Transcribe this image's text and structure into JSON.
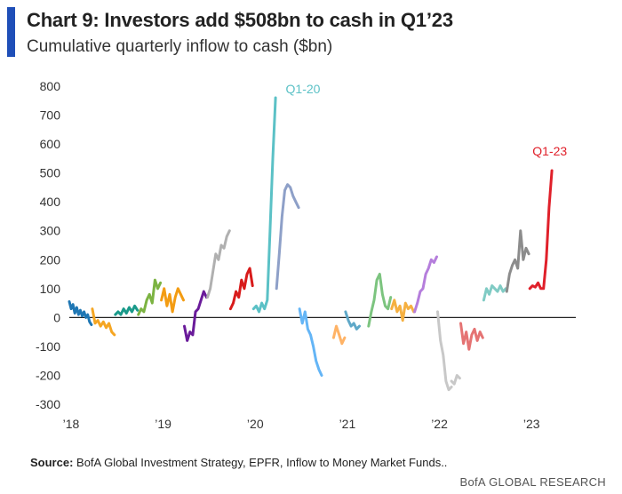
{
  "header": {
    "title": "Chart 9: Investors add $508bn to cash in Q1’23",
    "subtitle": "Cumulative quarterly inflow to cash ($bn)",
    "accent_color": "#1f4fb8"
  },
  "footer": {
    "source_label": "Source:",
    "source_text": "BofA Global Investment Strategy, EPFR, Inflow to Money Market Funds..",
    "brand": "BofA GLOBAL RESEARCH"
  },
  "chart_data": {
    "type": "line",
    "title": "Chart 9: Investors add $508bn to cash in Q1’23",
    "subtitle": "Cumulative quarterly inflow to cash ($bn)",
    "ylabel": "",
    "xlabel": "",
    "ylim": [
      -300,
      800
    ],
    "xlim": [
      2018.0,
      2023.5
    ],
    "yticks": [
      -300,
      -200,
      -100,
      0,
      100,
      200,
      300,
      400,
      500,
      600,
      700,
      800
    ],
    "ytick_labels": [
      "-300",
      "-200",
      "-100",
      "0",
      "100",
      "200",
      "300",
      "400",
      "500",
      "600",
      "700",
      "800"
    ],
    "xticks": [
      2018,
      2019,
      2020,
      2021,
      2022,
      2023
    ],
    "xtick_labels": [
      "’18",
      "’19",
      "’20",
      "’21",
      "’22",
      "’23"
    ],
    "grid": false,
    "zero_line": true,
    "annotations": [
      {
        "text": "Q1-20",
        "x": 2020.35,
        "y": 775,
        "color": "#5bc1c6"
      },
      {
        "text": "Q1-23",
        "x": 2023.03,
        "y": 560,
        "color": "#e0202a"
      }
    ],
    "series": [
      {
        "quarter": "Q1-18",
        "color": "#1f77b4",
        "x": [
          2018.0,
          2018.02,
          2018.04,
          2018.06,
          2018.08,
          2018.1,
          2018.12,
          2018.14,
          2018.16,
          2018.18,
          2018.2,
          2018.22,
          2018.24
        ],
        "y": [
          55,
          30,
          45,
          15,
          35,
          10,
          25,
          5,
          20,
          0,
          10,
          -15,
          -25
        ]
      },
      {
        "quarter": "Q2-18",
        "color": "#f5a623",
        "x": [
          2018.25,
          2018.28,
          2018.31,
          2018.34,
          2018.37,
          2018.4,
          2018.43,
          2018.46,
          2018.49
        ],
        "y": [
          30,
          -20,
          -10,
          -30,
          -15,
          -35,
          -20,
          -50,
          -60
        ]
      },
      {
        "quarter": "Q3-18",
        "color": "#1a9a8a",
        "x": [
          2018.5,
          2018.53,
          2018.56,
          2018.59,
          2018.62,
          2018.65,
          2018.68,
          2018.71,
          2018.74
        ],
        "y": [
          10,
          20,
          10,
          30,
          15,
          35,
          20,
          40,
          25
        ]
      },
      {
        "quarter": "Q4-18",
        "color": "#7cb342",
        "x": [
          2018.75,
          2018.78,
          2018.81,
          2018.84,
          2018.87,
          2018.9,
          2018.93,
          2018.96,
          2018.99
        ],
        "y": [
          10,
          30,
          20,
          60,
          80,
          50,
          130,
          100,
          120
        ]
      },
      {
        "quarter": "Q1-19",
        "color": "#f39c12",
        "x": [
          2019.0,
          2019.03,
          2019.06,
          2019.09,
          2019.12,
          2019.15,
          2019.18,
          2019.21,
          2019.24
        ],
        "y": [
          60,
          100,
          40,
          80,
          20,
          70,
          100,
          80,
          60
        ]
      },
      {
        "quarter": "Q2-19",
        "color": "#6a1b9a",
        "x": [
          2019.25,
          2019.28,
          2019.31,
          2019.34,
          2019.37,
          2019.4,
          2019.43,
          2019.46,
          2019.49
        ],
        "y": [
          -30,
          -80,
          -50,
          -60,
          20,
          30,
          60,
          90,
          70
        ]
      },
      {
        "quarter": "Q3-19",
        "color": "#b0b0b0",
        "x": [
          2019.5,
          2019.53,
          2019.56,
          2019.59,
          2019.62,
          2019.65,
          2019.68,
          2019.71,
          2019.74
        ],
        "y": [
          70,
          100,
          160,
          220,
          200,
          250,
          240,
          280,
          300
        ]
      },
      {
        "quarter": "Q4-19",
        "color": "#d81b1b",
        "x": [
          2019.75,
          2019.78,
          2019.81,
          2019.84,
          2019.87,
          2019.9,
          2019.93,
          2019.96,
          2019.99
        ],
        "y": [
          30,
          50,
          90,
          70,
          130,
          100,
          150,
          170,
          110
        ]
      },
      {
        "quarter": "Q1-20",
        "color": "#5bc1c6",
        "x": [
          2020.0,
          2020.03,
          2020.06,
          2020.09,
          2020.12,
          2020.15,
          2020.18,
          2020.21,
          2020.24
        ],
        "y": [
          30,
          40,
          20,
          50,
          30,
          60,
          300,
          550,
          760
        ]
      },
      {
        "quarter": "Q2-20",
        "color": "#8ea0c8",
        "x": [
          2020.25,
          2020.28,
          2020.31,
          2020.34,
          2020.37,
          2020.4,
          2020.43,
          2020.46,
          2020.49
        ],
        "y": [
          100,
          220,
          350,
          440,
          460,
          450,
          420,
          400,
          380
        ]
      },
      {
        "quarter": "Q3-20",
        "color": "#64b5f6",
        "x": [
          2020.5,
          2020.53,
          2020.56,
          2020.59,
          2020.62,
          2020.65,
          2020.68,
          2020.71,
          2020.74
        ],
        "y": [
          30,
          -20,
          20,
          -40,
          -60,
          -100,
          -150,
          -180,
          -200
        ]
      },
      {
        "quarter": "Q4-20",
        "color": "#ffb366",
        "x": [
          2020.87,
          2020.9,
          2020.93,
          2020.96,
          2020.99
        ],
        "y": [
          -70,
          -30,
          -60,
          -90,
          -70
        ]
      },
      {
        "quarter": "Q1-21",
        "color": "#5fa8c8",
        "x": [
          2021.0,
          2021.03,
          2021.06,
          2021.09,
          2021.12,
          2021.15
        ],
        "y": [
          20,
          -10,
          -30,
          -20,
          -40,
          -30
        ]
      },
      {
        "quarter": "Q2-21",
        "color": "#7cc47f",
        "x": [
          2021.25,
          2021.28,
          2021.31,
          2021.34,
          2021.37,
          2021.4,
          2021.43,
          2021.46,
          2021.49
        ],
        "y": [
          -30,
          20,
          60,
          130,
          150,
          80,
          40,
          30,
          70
        ]
      },
      {
        "quarter": "Q3-21",
        "color": "#f5b041",
        "x": [
          2021.5,
          2021.53,
          2021.56,
          2021.59,
          2021.62,
          2021.65,
          2021.68,
          2021.71,
          2021.74
        ],
        "y": [
          30,
          60,
          20,
          40,
          -10,
          50,
          30,
          40,
          20
        ]
      },
      {
        "quarter": "Q4-21",
        "color": "#b57edc",
        "x": [
          2021.75,
          2021.78,
          2021.81,
          2021.84,
          2021.87,
          2021.9,
          2021.93,
          2021.96,
          2021.99
        ],
        "y": [
          20,
          50,
          90,
          100,
          150,
          170,
          200,
          190,
          210
        ]
      },
      {
        "quarter": "Q1-22",
        "color": "#c8c8c8",
        "x": [
          2022.0,
          2022.03,
          2022.06,
          2022.09,
          2022.12,
          2022.15
        ],
        "y": [
          20,
          -80,
          -130,
          -220,
          -250,
          -240
        ]
      },
      {
        "quarter": "Q1-22b",
        "color": "#c8c8c8",
        "x": [
          2022.15,
          2022.18,
          2022.21,
          2022.24
        ],
        "y": [
          -220,
          -230,
          -200,
          -210
        ]
      },
      {
        "quarter": "Q2-22",
        "color": "#e57373",
        "x": [
          2022.25,
          2022.28,
          2022.31,
          2022.34,
          2022.37,
          2022.4,
          2022.43,
          2022.46,
          2022.49
        ],
        "y": [
          -20,
          -90,
          -50,
          -110,
          -60,
          -40,
          -80,
          -50,
          -70
        ]
      },
      {
        "quarter": "Q4-22",
        "color": "#80cbc4",
        "x": [
          2022.5,
          2022.53,
          2022.56,
          2022.59,
          2022.62,
          2022.65,
          2022.68,
          2022.71,
          2022.74
        ],
        "y": [
          60,
          100,
          80,
          110,
          100,
          90,
          110,
          90,
          100
        ]
      },
      {
        "quarter": "Q4-22",
        "color": "#8c8c8c",
        "x": [
          2022.75,
          2022.78,
          2022.81,
          2022.84,
          2022.87,
          2022.9,
          2022.93,
          2022.96,
          2022.99
        ],
        "y": [
          90,
          150,
          180,
          200,
          170,
          300,
          200,
          240,
          220
        ]
      },
      {
        "quarter": "Q1-23",
        "color": "#e0202a",
        "x": [
          2023.0,
          2023.03,
          2023.06,
          2023.09,
          2023.12,
          2023.15,
          2023.18,
          2023.21,
          2023.24
        ],
        "y": [
          100,
          110,
          105,
          120,
          100,
          100,
          200,
          380,
          508
        ]
      }
    ]
  }
}
